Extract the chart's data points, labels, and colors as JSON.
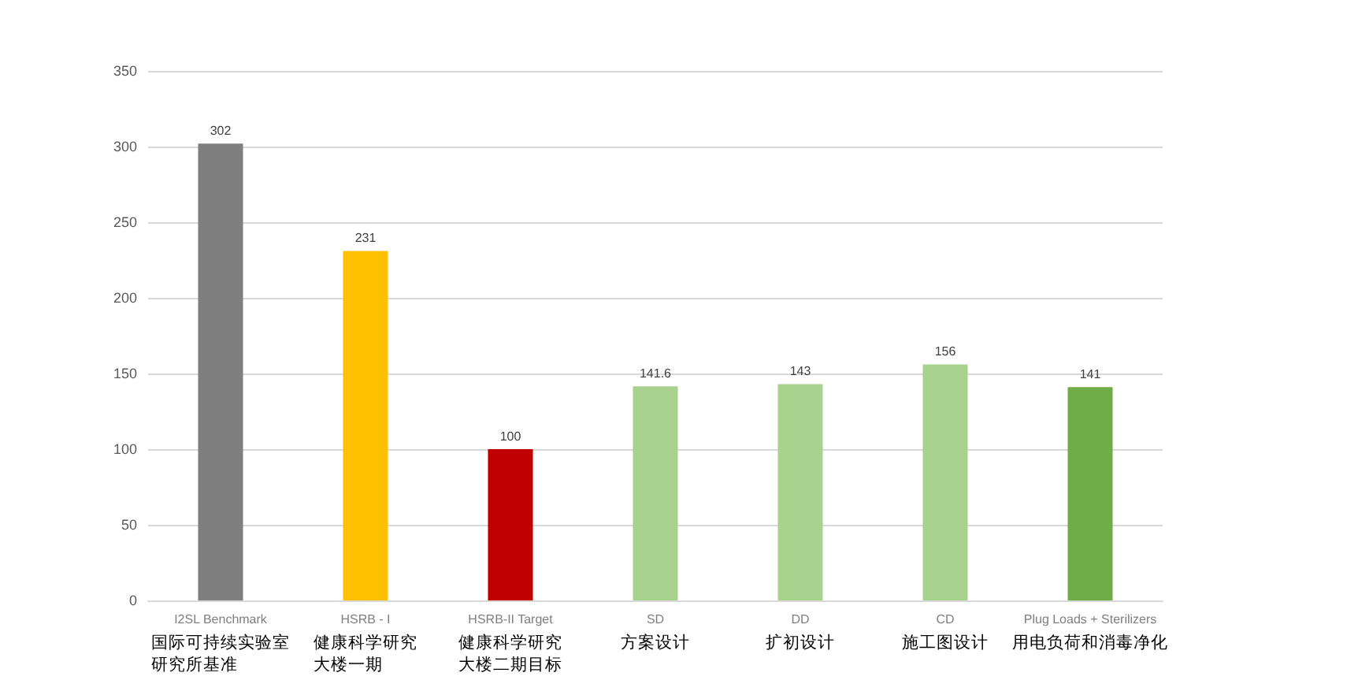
{
  "chart_data": {
    "type": "bar",
    "categories": [
      "I2SL Benchmark\n国际可持续实验室研究所基准",
      "HSRB - I\n健康科学研究大楼一期",
      "HSRB-II Target\n健康科学研究大楼二期目标",
      "SD\n方案设计",
      "DD\n扩初设计",
      "CD\n施工图设计",
      "Plug Loads + Sterilizers\n用电负荷和消毒净化"
    ],
    "values": [
      302,
      231,
      100,
      141.6,
      143,
      156,
      141
    ],
    "colors": [
      "#7f7f7f",
      "#ffc000",
      "#c00000",
      "#a9d18e",
      "#a9d18e",
      "#a9d18e",
      "#70ad47"
    ],
    "ylim": [
      0,
      350
    ],
    "yticks": [
      0,
      50,
      100,
      150,
      200,
      250,
      300,
      350
    ],
    "grid": "y",
    "data_labels": true
  }
}
